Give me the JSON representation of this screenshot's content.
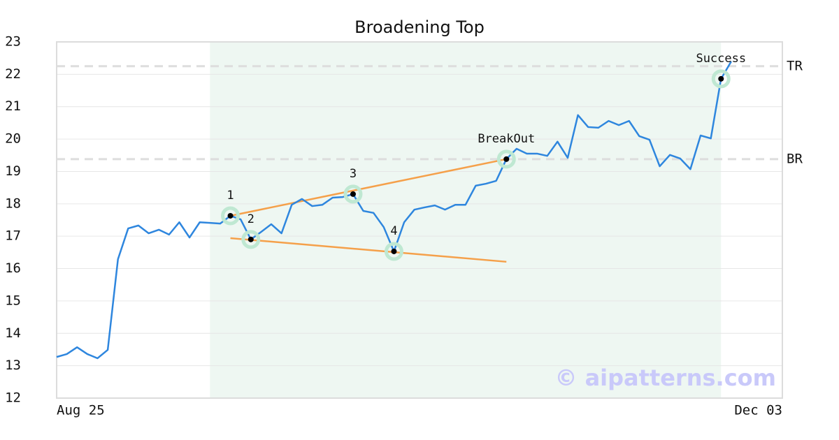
{
  "chart_data": {
    "type": "line",
    "title": "Broadening Top",
    "categories": [
      "Aug 25",
      null,
      null,
      null,
      null,
      null,
      null,
      null,
      null,
      null,
      null,
      null,
      null,
      null,
      null,
      null,
      null,
      null,
      null,
      null,
      null,
      null,
      null,
      null,
      null,
      null,
      null,
      null,
      null,
      null,
      null,
      null,
      null,
      null,
      null,
      null,
      null,
      null,
      null,
      null,
      null,
      null,
      null,
      null,
      null,
      null,
      null,
      null,
      null,
      null,
      null,
      null,
      null,
      null,
      null,
      null,
      null,
      null,
      null,
      null,
      null,
      null,
      null,
      null,
      null,
      null,
      null,
      null,
      null,
      null,
      null,
      "Dec 03"
    ],
    "values": [
      13.27,
      13.36,
      13.57,
      13.36,
      13.23,
      13.49,
      16.29,
      17.24,
      17.33,
      17.09,
      17.2,
      17.05,
      17.43,
      16.96,
      17.43,
      17.41,
      17.39,
      17.63,
      17.52,
      16.9,
      17.13,
      17.37,
      17.09,
      17.97,
      18.15,
      17.93,
      17.97,
      18.19,
      18.21,
      18.3,
      17.78,
      17.72,
      17.28,
      16.53,
      17.43,
      17.82,
      17.89,
      17.95,
      17.82,
      17.97,
      17.97,
      18.56,
      18.62,
      18.71,
      19.38,
      19.7,
      19.55,
      19.55,
      19.48,
      19.92,
      19.42,
      20.74,
      20.37,
      20.35,
      20.56,
      20.43,
      20.56,
      20.09,
      19.98,
      19.16,
      19.51,
      19.4,
      19.07,
      20.11,
      20.02,
      21.86,
      22.4,
      null,
      null,
      null,
      null,
      null
    ],
    "color": "#2e86de",
    "ylim": [
      12,
      23
    ],
    "yticks": [
      12,
      13,
      14,
      15,
      16,
      17,
      18,
      19,
      20,
      21,
      22,
      23
    ],
    "grid": true,
    "highlight": [
      15,
      65
    ],
    "points": [
      {
        "label": "1",
        "x": 17,
        "y": 17.63
      },
      {
        "label": "2",
        "x": 19,
        "y": 16.9
      },
      {
        "label": "3",
        "x": 29,
        "y": 18.3
      },
      {
        "label": "4",
        "x": 33,
        "y": 16.53
      },
      {
        "label": "BreakOut",
        "x": 44,
        "y": 19.38
      },
      {
        "label": "Success",
        "x": 65,
        "y": 21.86
      }
    ],
    "trendlines": [
      {
        "color": "#f5a04a",
        "x": [
          17,
          44
        ],
        "y": [
          17.63,
          19.38
        ]
      },
      {
        "color": "#f5a04a",
        "x": [
          17,
          44
        ],
        "y": [
          16.94,
          16.21
        ]
      }
    ],
    "levels": [
      {
        "label": "TR",
        "value": 22.25
      },
      {
        "label": "BR",
        "value": 19.38
      }
    ],
    "watermark": "© aipatterns.com"
  }
}
